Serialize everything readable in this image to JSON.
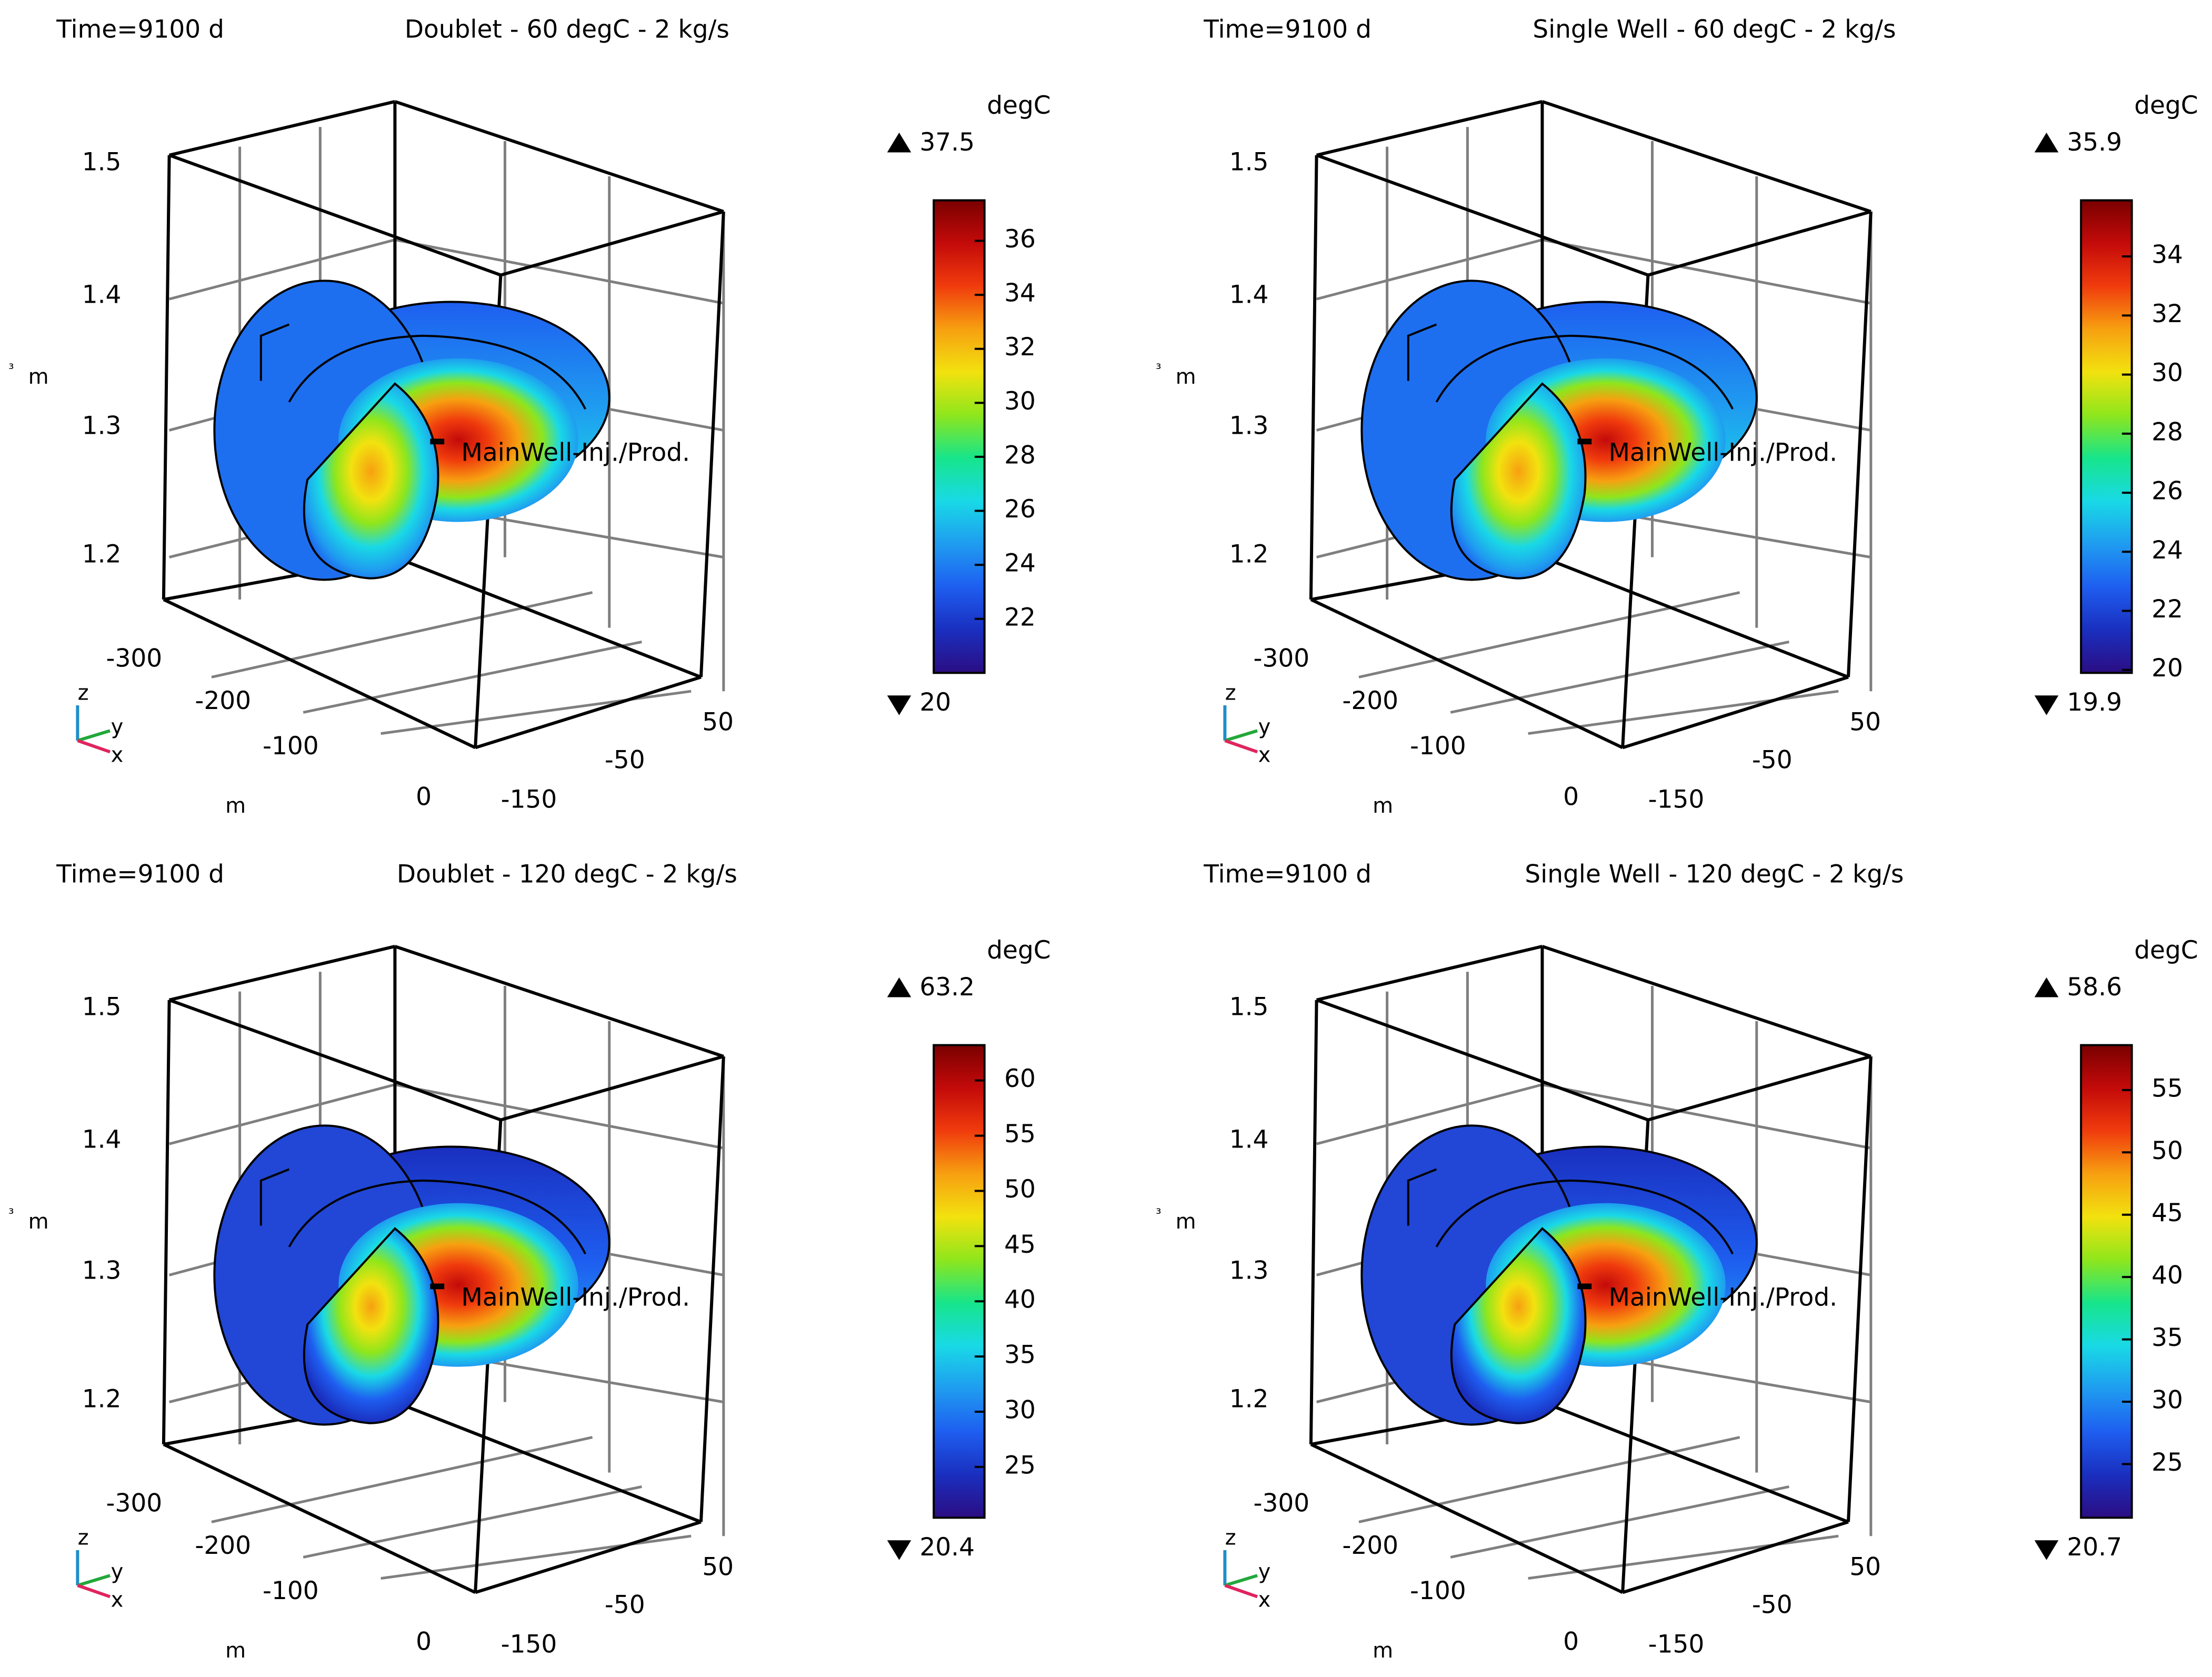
{
  "colormap": [
    "#2b0d83",
    "#1a2fbf",
    "#1e5ef0",
    "#1f9cf0",
    "#19d9e6",
    "#17e58a",
    "#8ee61c",
    "#f2e20f",
    "#f7a010",
    "#f03c0d",
    "#c40a0a",
    "#7a0000"
  ],
  "chart_data": [
    {
      "type": "3d-surface",
      "time_label": "Time=9100 d",
      "title": "Doublet - 60 degC - 2 kg/s",
      "unit": "degC",
      "max_label": "37.5",
      "min_label": "20",
      "range": [
        20,
        37.5
      ],
      "colorbar_ticks": [
        "36",
        "34",
        "32",
        "30",
        "28",
        "26",
        "24",
        "22"
      ],
      "colorbar_values": [
        36,
        34,
        32,
        30,
        28,
        26,
        24,
        22
      ],
      "z_ticks": [
        "1.5",
        "1.4",
        "1.3",
        "1.2"
      ],
      "x_ticks": [
        "-300",
        "-200",
        "-100",
        "0"
      ],
      "y_ticks": [
        "50",
        "-50",
        "-150"
      ],
      "z_axis_label": "m",
      "z_axis_exponent": "³",
      "x_axis_label": "m",
      "well_label": "MainWell-Inj./Prod.",
      "triad": {
        "z": "z",
        "y": "y",
        "x": "x"
      }
    },
    {
      "type": "3d-surface",
      "time_label": "Time=9100 d",
      "title": "Single Well - 60 degC - 2 kg/s",
      "unit": "degC",
      "max_label": "35.9",
      "min_label": "19.9",
      "range": [
        19.9,
        35.9
      ],
      "colorbar_ticks": [
        "34",
        "32",
        "30",
        "28",
        "26",
        "24",
        "22",
        "20"
      ],
      "colorbar_values": [
        34,
        32,
        30,
        28,
        26,
        24,
        22,
        20
      ],
      "z_ticks": [
        "1.5",
        "1.4",
        "1.3",
        "1.2"
      ],
      "x_ticks": [
        "-300",
        "-200",
        "-100",
        "0"
      ],
      "y_ticks": [
        "50",
        "-50",
        "-150"
      ],
      "z_axis_label": "m",
      "z_axis_exponent": "³",
      "x_axis_label": "m",
      "well_label": "MainWell-Inj./Prod.",
      "triad": {
        "z": "z",
        "y": "y",
        "x": "x"
      }
    },
    {
      "type": "3d-surface",
      "time_label": "Time=9100 d",
      "title": "Doublet - 120 degC - 2 kg/s",
      "unit": "degC",
      "max_label": "63.2",
      "min_label": "20.4",
      "range": [
        20.4,
        63.2
      ],
      "colorbar_ticks": [
        "60",
        "55",
        "50",
        "45",
        "40",
        "35",
        "30",
        "25"
      ],
      "colorbar_values": [
        60,
        55,
        50,
        45,
        40,
        35,
        30,
        25
      ],
      "z_ticks": [
        "1.5",
        "1.4",
        "1.3",
        "1.2"
      ],
      "x_ticks": [
        "-300",
        "-200",
        "-100",
        "0"
      ],
      "y_ticks": [
        "50",
        "-50",
        "-150"
      ],
      "z_axis_label": "m",
      "z_axis_exponent": "³",
      "x_axis_label": "m",
      "well_label": "MainWell-Inj./Prod.",
      "triad": {
        "z": "z",
        "y": "y",
        "x": "x"
      }
    },
    {
      "type": "3d-surface",
      "time_label": "Time=9100 d",
      "title": "Single Well - 120 degC - 2 kg/s",
      "unit": "degC",
      "max_label": "58.6",
      "min_label": "20.7",
      "range": [
        20.7,
        58.6
      ],
      "colorbar_ticks": [
        "55",
        "50",
        "45",
        "40",
        "35",
        "30",
        "25"
      ],
      "colorbar_values": [
        55,
        50,
        45,
        40,
        35,
        30,
        25
      ],
      "z_ticks": [
        "1.5",
        "1.4",
        "1.3",
        "1.2"
      ],
      "x_ticks": [
        "-300",
        "-200",
        "-100",
        "0"
      ],
      "y_ticks": [
        "50",
        "-50",
        "-150"
      ],
      "z_axis_label": "m",
      "z_axis_exponent": "³",
      "x_axis_label": "m",
      "well_label": "MainWell-Inj./Prod.",
      "triad": {
        "z": "z",
        "y": "y",
        "x": "x"
      }
    }
  ]
}
